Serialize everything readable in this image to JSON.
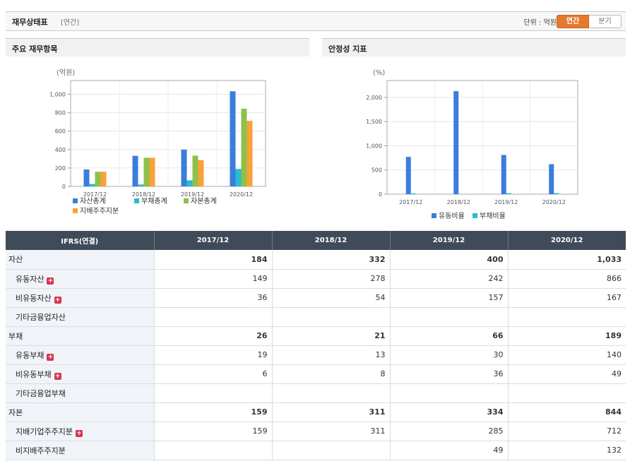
{
  "header": {
    "title": "재무상태표",
    "subtitle": "[연간]",
    "unit_label": "단위 : 억원",
    "toggle_annual": "연간",
    "toggle_quarter": "분기"
  },
  "panels": {
    "left_title": "주요 재무항목",
    "right_title": "안정성 지표"
  },
  "colors": {
    "blue": "#3a7ddb",
    "cyan": "#29bcd0",
    "green": "#8dc149",
    "orange": "#f9a23a",
    "accent": "#e57a2f",
    "table_header": "#3f4b59"
  },
  "chart_data": [
    {
      "type": "bar",
      "unit_label": "(억원)",
      "categories": [
        "2017/12",
        "2018/12",
        "2019/12",
        "2020/12"
      ],
      "ylim": [
        0,
        1150
      ],
      "yticks": [
        0,
        200,
        400,
        600,
        800,
        1000
      ],
      "ytick_labels": [
        "0",
        "200",
        "400",
        "600",
        "800",
        "1,000"
      ],
      "series": [
        {
          "name": "자산총계",
          "color": "#3a7ddb",
          "values": [
            184,
            332,
            400,
            1033
          ]
        },
        {
          "name": "부채총계",
          "color": "#29bcd0",
          "values": [
            26,
            21,
            66,
            189
          ]
        },
        {
          "name": "자본총계",
          "color": "#8dc149",
          "values": [
            159,
            311,
            334,
            844
          ]
        },
        {
          "name": "지배주주지분",
          "color": "#f9a23a",
          "values": [
            159,
            311,
            285,
            712
          ]
        }
      ],
      "grid": true,
      "legend": "bottom"
    },
    {
      "type": "bar",
      "unit_label": "(%)",
      "categories": [
        "2017/12",
        "2018/12",
        "2019/12",
        "2020/12"
      ],
      "ylim": [
        0,
        2350
      ],
      "yticks": [
        0,
        500,
        1000,
        1500,
        2000
      ],
      "ytick_labels": [
        "0",
        "500",
        "1,000",
        "1,500",
        "2,000"
      ],
      "series": [
        {
          "name": "유동비율",
          "color": "#3a7ddb",
          "values": [
            770,
            2130,
            810,
            620
          ]
        },
        {
          "name": "부채비율",
          "color": "#29bcd0",
          "values": [
            16,
            7,
            20,
            22
          ]
        }
      ],
      "grid": true,
      "legend": "bottom"
    }
  ],
  "table": {
    "header": [
      "IFRS(연결)",
      "2017/12",
      "2018/12",
      "2019/12",
      "2020/12"
    ],
    "rows": [
      {
        "label": "자산",
        "level": "major",
        "plus": false,
        "values": [
          "184",
          "332",
          "400",
          "1,033"
        ]
      },
      {
        "label": "유동자산",
        "level": "sub",
        "plus": true,
        "values": [
          "149",
          "278",
          "242",
          "866"
        ]
      },
      {
        "label": "비유동자산",
        "level": "sub",
        "plus": true,
        "values": [
          "36",
          "54",
          "157",
          "167"
        ]
      },
      {
        "label": "기타금융업자산",
        "level": "sub",
        "plus": false,
        "values": [
          "",
          "",
          "",
          ""
        ]
      },
      {
        "label": "부채",
        "level": "major",
        "plus": false,
        "values": [
          "26",
          "21",
          "66",
          "189"
        ]
      },
      {
        "label": "유동부채",
        "level": "sub",
        "plus": true,
        "values": [
          "19",
          "13",
          "30",
          "140"
        ]
      },
      {
        "label": "비유동부채",
        "level": "sub",
        "plus": true,
        "values": [
          "6",
          "8",
          "36",
          "49"
        ]
      },
      {
        "label": "기타금융업부채",
        "level": "sub",
        "plus": false,
        "values": [
          "",
          "",
          "",
          ""
        ]
      },
      {
        "label": "자본",
        "level": "major",
        "plus": false,
        "values": [
          "159",
          "311",
          "334",
          "844"
        ]
      },
      {
        "label": "지배기업주주지분",
        "level": "sub",
        "plus": true,
        "values": [
          "159",
          "311",
          "285",
          "712"
        ]
      },
      {
        "label": "비지배주주지분",
        "level": "sub",
        "plus": false,
        "values": [
          "",
          "",
          "49",
          "132"
        ]
      }
    ]
  }
}
